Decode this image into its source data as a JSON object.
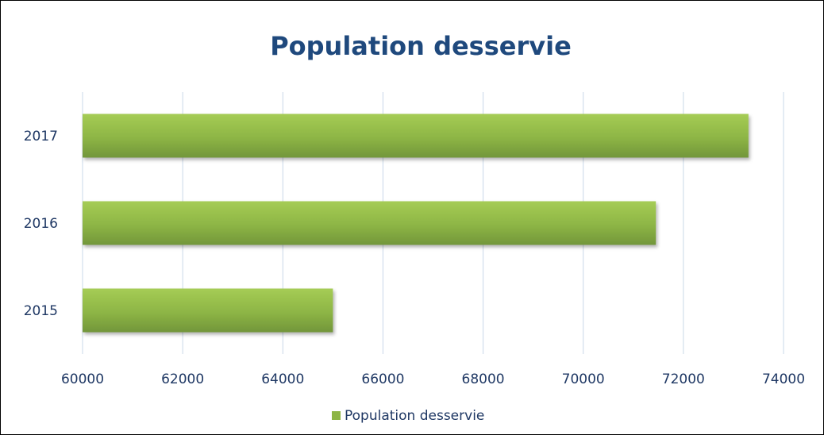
{
  "chart_data": {
    "type": "bar",
    "orientation": "horizontal",
    "title": "Population desservie",
    "xlabel": "",
    "ylabel": "",
    "categories": [
      "2015",
      "2016",
      "2017"
    ],
    "series": [
      {
        "name": "Population desservie",
        "values": [
          65000,
          71450,
          73300
        ]
      }
    ],
    "xlim": [
      60000,
      74000
    ],
    "x_ticks": [
      "60000",
      "62000",
      "64000",
      "66000",
      "68000",
      "70000",
      "72000",
      "74000"
    ],
    "grid": "vertical",
    "legend": "bottom",
    "colors": {
      "bar": "#8db545",
      "bar_light": "#a5cc55",
      "bar_dark": "#72963a",
      "text": "#1f3864",
      "title": "#1f497d",
      "grid": "#c9d8e8"
    }
  }
}
